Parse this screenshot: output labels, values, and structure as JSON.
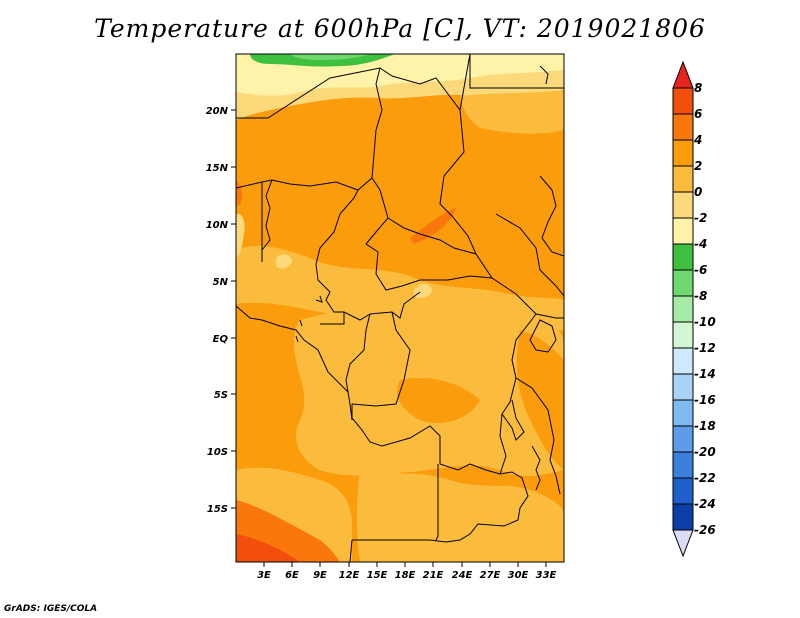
{
  "title": "Temperature at 600hPa [C], VT: 2019021806",
  "credit": "GrADS: IGES/COLA",
  "map": {
    "lat_labels": [
      "20N",
      "15N",
      "10N",
      "5N",
      "EQ",
      "5S",
      "10S",
      "15S"
    ],
    "lon_labels": [
      "3E",
      "6E",
      "9E",
      "12E",
      "15E",
      "18E",
      "21E",
      "24E",
      "27E",
      "30E",
      "33E"
    ]
  },
  "colorbar": {
    "labels": [
      "8",
      "6",
      "4",
      "2",
      "0",
      "-2",
      "-4",
      "-6",
      "-8",
      "-10",
      "-12",
      "-14",
      "-16",
      "-18",
      "-20",
      "-22",
      "-24",
      "-26"
    ],
    "colors": [
      "#e6231d",
      "#f24f0c",
      "#f9770b",
      "#fa9c0c",
      "#fbbc3d",
      "#fcd97a",
      "#fef3a8",
      "#3fc13f",
      "#6fd86f",
      "#a5eba5",
      "#d5f6d5",
      "#cfe8fb",
      "#a8d3f7",
      "#7fb9f1",
      "#5c9ce8",
      "#3d7fdd",
      "#1f5fcb",
      "#0a3ea8",
      "#0b1e7a"
    ],
    "below_color": "#dcdcf5"
  },
  "field_colors": {
    "t8": "#f24f0c",
    "t6": "#f9770b",
    "t4": "#fa9c0c",
    "t2": "#fbbc3d",
    "t0": "#fcd97a",
    "tm2": "#fef3a8",
    "tm6": "#3fc13f",
    "tm8": "#6fd86f"
  }
}
